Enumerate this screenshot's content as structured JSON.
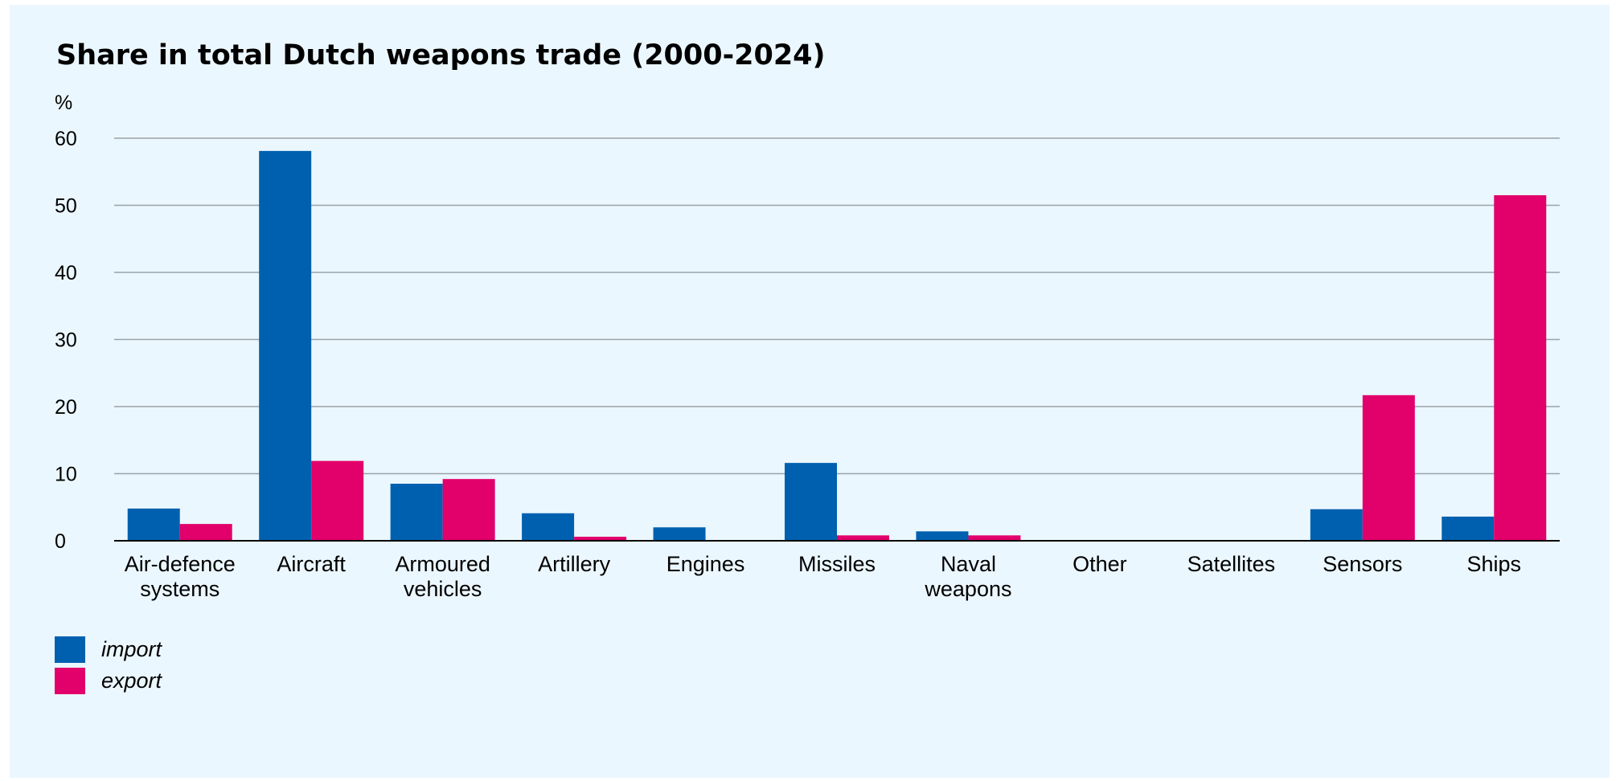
{
  "chart_data": {
    "type": "bar",
    "title": "Share in total Dutch weapons trade (2000-2024)",
    "unit_label": "%",
    "xlabel": "",
    "ylabel": "%",
    "ylim": [
      0,
      60
    ],
    "yticks": [
      "0",
      "10",
      "20",
      "30",
      "40",
      "50",
      "60"
    ],
    "grid": true,
    "legend_position": "bottom-left",
    "categories": [
      [
        "Air-defence",
        "systems"
      ],
      [
        "Aircraft"
      ],
      [
        "Armoured",
        "vehicles"
      ],
      [
        "Artillery"
      ],
      [
        "Engines"
      ],
      [
        "Missiles"
      ],
      [
        "Naval",
        "weapons"
      ],
      [
        "Other"
      ],
      [
        "Satellites"
      ],
      [
        "Sensors"
      ],
      [
        "Ships"
      ]
    ],
    "series": [
      {
        "name": "import",
        "color": "#0060b0",
        "values": [
          4.8,
          58.1,
          8.5,
          4.1,
          2.0,
          11.6,
          1.4,
          0.1,
          0.0,
          4.7,
          3.6
        ]
      },
      {
        "name": "export",
        "color": "#e2006b",
        "values": [
          2.5,
          11.9,
          9.2,
          0.6,
          0.0,
          0.8,
          0.8,
          0.0,
          0.0,
          21.7,
          51.5
        ]
      }
    ]
  }
}
